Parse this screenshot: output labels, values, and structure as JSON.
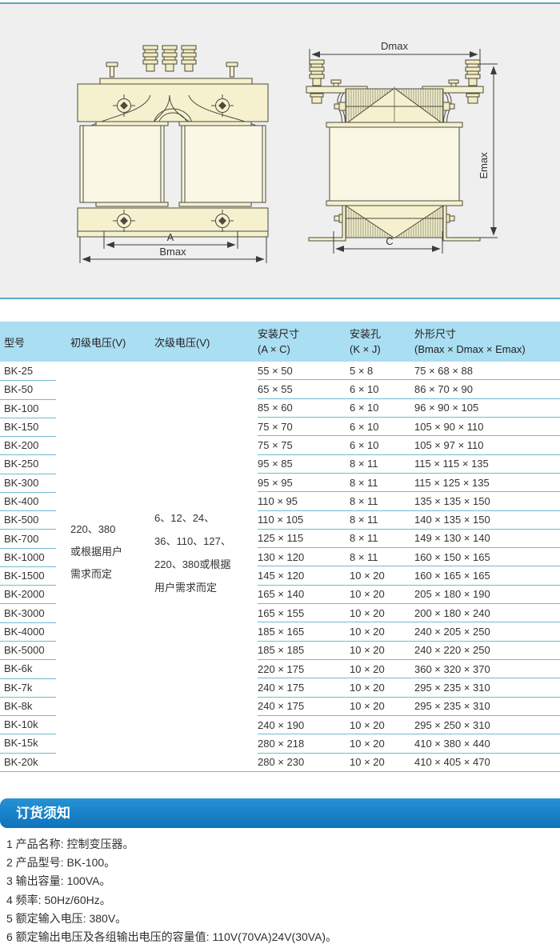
{
  "colors": {
    "panel_bg": "#efefef",
    "panel_border": "#58a9c3",
    "header_bg": "#aadef2",
    "row_line": "#74bad2",
    "banner_blue": "#1a84ca",
    "drawing_fill": "#f5f1cf",
    "coil_fill": "#faf7e4",
    "drawing_stroke": "#4a4a3d"
  },
  "diagram": {
    "dim_labels": {
      "a": "A",
      "bmax": "Bmax",
      "c": "C",
      "dmax": "Dmax",
      "emax": "Emax"
    }
  },
  "table": {
    "headers": {
      "model": "型号",
      "primary": "初级电压(V)",
      "secondary": "次级电压(V)",
      "mount_title": "安装尺寸",
      "mount_sub": "(A × C)",
      "hole_title": "安装孔",
      "hole_sub": "(K × J)",
      "outline_title": "外形尺寸",
      "outline_sub": "(Bmax × Dmax × Emax)"
    },
    "primary_voltage_lines": [
      "220、380",
      "或根据用户",
      "需求而定"
    ],
    "secondary_voltage_lines": [
      "6、12、24、",
      "36、110、127、",
      "220、380或根据",
      "用户需求而定"
    ],
    "rows": [
      {
        "model": "BK-25",
        "mount": "55 × 50",
        "hole": "5 × 8",
        "outline": "75 × 68 × 88"
      },
      {
        "model": "BK-50",
        "mount": "65 × 55",
        "hole": "6 × 10",
        "outline": "86 × 70 × 90"
      },
      {
        "model": "BK-100",
        "mount": "85 × 60",
        "hole": "6 × 10",
        "outline": "96 × 90 × 105"
      },
      {
        "model": "BK-150",
        "mount": "75 × 70",
        "hole": "6 × 10",
        "outline": "105 × 90 × 110"
      },
      {
        "model": "BK-200",
        "mount": "75 × 75",
        "hole": "6 × 10",
        "outline": "105 × 97 × 110"
      },
      {
        "model": "BK-250",
        "mount": "95 × 85",
        "hole": "8 × 11",
        "outline": "115 × 115 × 135"
      },
      {
        "model": "BK-300",
        "mount": "95 × 95",
        "hole": "8 × 11",
        "outline": "115 × 125 × 135"
      },
      {
        "model": "BK-400",
        "mount": "110 × 95",
        "hole": "8 × 11",
        "outline": "135 × 135 × 150"
      },
      {
        "model": "BK-500",
        "mount": "110 × 105",
        "hole": "8 × 11",
        "outline": "140 × 135 × 150"
      },
      {
        "model": "BK-700",
        "mount": "125 × 115",
        "hole": "8 × 11",
        "outline": "149 × 130 × 140"
      },
      {
        "model": "BK-1000",
        "mount": "130 × 120",
        "hole": "8 × 11",
        "outline": "160 × 150 × 165"
      },
      {
        "model": "BK-1500",
        "mount": "145 × 120",
        "hole": "10 × 20",
        "outline": "160 × 165 × 165"
      },
      {
        "model": "BK-2000",
        "mount": "165 × 140",
        "hole": "10 × 20",
        "outline": "205 × 180 × 190"
      },
      {
        "model": "BK-3000",
        "mount": "165 × 155",
        "hole": "10 × 20",
        "outline": "200 × 180 × 240"
      },
      {
        "model": "BK-4000",
        "mount": "185 × 165",
        "hole": "10 × 20",
        "outline": "240 × 205 × 250"
      },
      {
        "model": "BK-5000",
        "mount": "185 × 185",
        "hole": "10 × 20",
        "outline": "240 × 220 × 250"
      },
      {
        "model": "BK-6k",
        "mount": "220 × 175",
        "hole": "10 × 20",
        "outline": "360 × 320 × 370"
      },
      {
        "model": "BK-7k",
        "mount": "240 × 175",
        "hole": "10 × 20",
        "outline": "295 × 235 × 310"
      },
      {
        "model": "BK-8k",
        "mount": "240 × 175",
        "hole": "10 × 20",
        "outline": "295 × 235 × 310"
      },
      {
        "model": "BK-10k",
        "mount": "240 × 190",
        "hole": "10 × 20",
        "outline": "295 × 250 × 310"
      },
      {
        "model": "BK-15k",
        "mount": "280 × 218",
        "hole": "10 × 20",
        "outline": "410 × 380 × 440"
      },
      {
        "model": "BK-20k",
        "mount": "280 × 230",
        "hole": "10 × 20",
        "outline": "410 × 405 × 470"
      }
    ]
  },
  "notice": {
    "title": "订货须知",
    "items": [
      "1 产品名称: 控制变压器。",
      "2 产品型号: BK-100。",
      "3 输出容量: 100VA。",
      "4 频率: 50Hz/60Hz。",
      "5 额定输入电压: 380V。",
      "6 额定输出电压及各组输出电压的容量值: 110V(70VA)24V(30VA)。"
    ]
  }
}
